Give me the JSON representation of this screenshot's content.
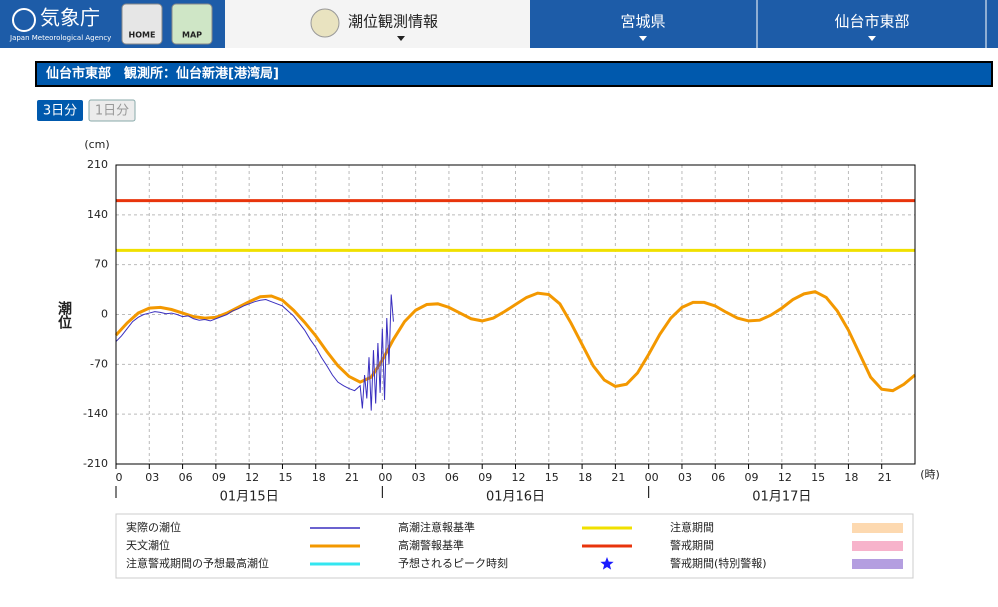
{
  "header": {
    "logo_text": "気象庁",
    "logo_sub": "Japan Meteorological Agency",
    "home": "HOME",
    "map": "MAP",
    "menus": [
      "潮位観測情報",
      "宮城県",
      "仙台市東部"
    ]
  },
  "station_bar": "仙台市東部　観測所：仙台新港[港湾局]",
  "tabs": [
    "3日分",
    "1日分"
  ],
  "chart_data": {
    "type": "line",
    "y_label": "潮位",
    "y_unit": "(cm)",
    "x_unit": "(時)",
    "ylim": [
      -210,
      210
    ],
    "yticks": [
      -210,
      -140,
      -70,
      0,
      70,
      140,
      210
    ],
    "grid": true,
    "xlim": [
      0,
      72
    ],
    "xticks": [
      0,
      {
        "value": 3,
        "label": "03"
      },
      {
        "value": 6,
        "label": "06"
      },
      {
        "value": 9,
        "label": "09"
      },
      12,
      15,
      18,
      21,
      {
        "value": 24,
        "label": "00"
      },
      {
        "value": 27,
        "label": "03"
      },
      {
        "value": 30,
        "label": "06"
      },
      {
        "value": 33,
        "label": "09"
      },
      {
        "value": 36,
        "label": "12"
      },
      {
        "value": 39,
        "label": "15"
      },
      {
        "value": 42,
        "label": "18"
      },
      {
        "value": 45,
        "label": "21"
      },
      {
        "value": 48,
        "label": "00"
      },
      {
        "value": 51,
        "label": "03"
      },
      {
        "value": 54,
        "label": "06"
      },
      {
        "value": 57,
        "label": "09"
      },
      {
        "value": 60,
        "label": "12"
      },
      {
        "value": 63,
        "label": "15"
      },
      {
        "value": 66,
        "label": "18"
      },
      {
        "value": 69,
        "label": "21"
      }
    ],
    "x_groups": [
      "01月15日",
      "01月16日",
      "01月17日"
    ],
    "series": [
      {
        "name": "実際の潮位",
        "color": "#3a2fbf",
        "width": 1,
        "x": [
          0,
          0.5,
          1,
          1.5,
          2,
          2.5,
          3,
          3.5,
          4,
          4.5,
          5,
          5.5,
          6,
          6.5,
          7,
          7.5,
          8,
          8.5,
          9,
          9.5,
          10,
          10.5,
          11,
          11.5,
          12,
          12.5,
          13,
          13.5,
          14,
          14.5,
          15,
          15.5,
          16,
          16.5,
          17,
          17.5,
          18,
          18.5,
          19,
          19.5,
          20,
          20.5,
          21,
          21.5,
          22,
          22.2,
          22.4,
          22.6,
          22.8,
          23,
          23.2,
          23.4,
          23.6,
          23.8,
          24,
          24.2,
          24.4,
          24.6,
          24.8,
          25
        ],
        "values": [
          -38,
          -30,
          -20,
          -10,
          -4,
          0,
          2,
          4,
          3,
          1,
          2,
          0,
          -3,
          -2,
          -6,
          -8,
          -7,
          -9,
          -6,
          -3,
          0,
          5,
          8,
          12,
          15,
          18,
          20,
          21,
          18,
          15,
          12,
          5,
          -2,
          -12,
          -22,
          -35,
          -46,
          -60,
          -72,
          -85,
          -95,
          -100,
          -104,
          -107,
          -100,
          -132,
          -85,
          -118,
          -60,
          -135,
          -50,
          -125,
          -40,
          -110,
          -20,
          -120,
          -5,
          -70,
          28,
          -10
        ]
      },
      {
        "name": "天文潮位",
        "color": "#f39800",
        "width": 3,
        "x": [
          0,
          1,
          2,
          3,
          4,
          5,
          6,
          7,
          8,
          9,
          10,
          11,
          12,
          13,
          14,
          15,
          16,
          17,
          18,
          19,
          20,
          21,
          22,
          23,
          24,
          25,
          26,
          27,
          28,
          29,
          30,
          31,
          32,
          33,
          34,
          35,
          36,
          37,
          38,
          39,
          40,
          41,
          42,
          43,
          44,
          45,
          46,
          47,
          48,
          49,
          50,
          51,
          52,
          53,
          54,
          55,
          56,
          57,
          58,
          59,
          60,
          61,
          62,
          63,
          64,
          65,
          66,
          67,
          68,
          69,
          70,
          71,
          72
        ],
        "values": [
          -29,
          -12,
          2,
          9,
          10,
          7,
          2,
          -3,
          -5,
          -4,
          2,
          10,
          18,
          25,
          26,
          20,
          6,
          -11,
          -30,
          -52,
          -72,
          -87,
          -95,
          -88,
          -64,
          -35,
          -10,
          6,
          14,
          15,
          10,
          2,
          -6,
          -9,
          -5,
          4,
          14,
          24,
          30,
          28,
          15,
          -12,
          -42,
          -72,
          -92,
          -101,
          -98,
          -82,
          -56,
          -28,
          -5,
          10,
          17,
          17,
          12,
          3,
          -5,
          -9,
          -8,
          -1,
          9,
          21,
          29,
          32,
          24,
          5,
          -22,
          -55,
          -88,
          -105,
          -107,
          -98,
          -85
        ]
      },
      {
        "name": "高潮注意報基準",
        "color": "#f0e000",
        "width": 3,
        "x": [
          0,
          72
        ],
        "values": [
          90,
          90
        ]
      },
      {
        "name": "高潮警報基準",
        "color": "#e8340c",
        "width": 3,
        "x": [
          0,
          72
        ],
        "values": [
          160,
          160
        ]
      }
    ],
    "legend_extra": [
      {
        "name": "注意警戒期間の予想最高潮位",
        "color": "#33e6f0",
        "symbol": "line"
      },
      {
        "name": "予想されるピーク時刻",
        "color": "#1a1aff",
        "symbol": "star"
      },
      {
        "name": "注意期間",
        "color": "#fdd9b0",
        "symbol": "box"
      },
      {
        "name": "警戒期間",
        "color": "#f7b3cb",
        "symbol": "box"
      },
      {
        "name": "警戒期間(特別警報)",
        "color": "#b49ee0",
        "symbol": "box"
      }
    ]
  }
}
